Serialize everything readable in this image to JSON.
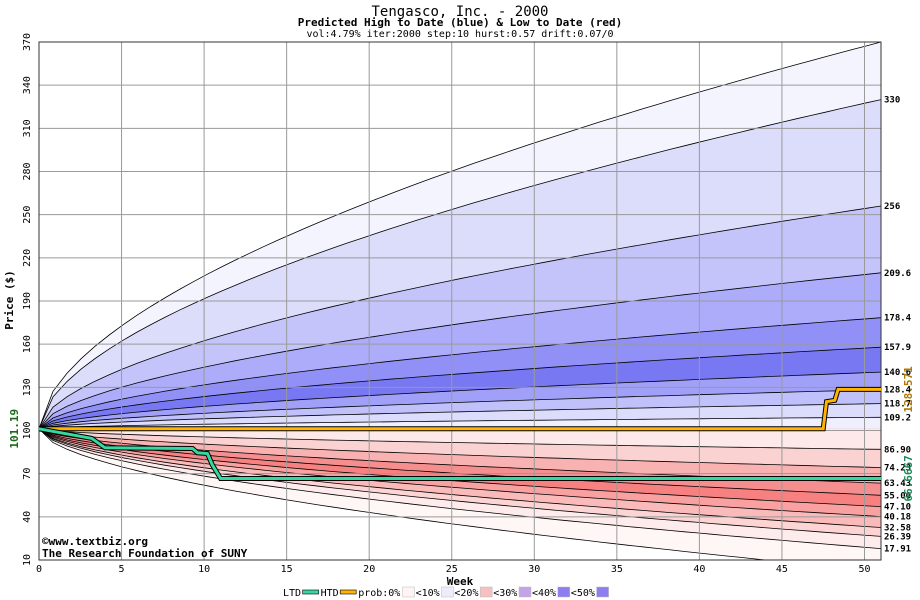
{
  "chart_data": {
    "type": "area",
    "title": "Tengasco, Inc. - 2000",
    "subtitle": "Predicted High to Date (blue) &  Low to Date (red)",
    "params": "vol:4.79% iter:2000 step:10 hurst:0.57 drift:0.07/0",
    "xlabel": "Week",
    "ylabel": "Price ($)",
    "xlim": [
      0,
      51
    ],
    "ylim": [
      10,
      370
    ],
    "xticks": [
      0,
      5,
      10,
      15,
      20,
      25,
      30,
      35,
      40,
      45,
      50
    ],
    "yticks": [
      10,
      40,
      70,
      100,
      130,
      160,
      190,
      220,
      250,
      280,
      310,
      340,
      370
    ],
    "grid": true,
    "start_price": 101.19,
    "start_label": "101.19",
    "upper_bands": [
      {
        "end": 370,
        "label": ""
      },
      {
        "end": 330,
        "label": "330"
      },
      {
        "end": 256,
        "label": "256"
      },
      {
        "end": 209.6,
        "label": "209.6"
      },
      {
        "end": 178.4,
        "label": "178.4"
      },
      {
        "end": 157.9,
        "label": "157.9"
      },
      {
        "end": 140.6,
        "label": "140.6"
      },
      {
        "end": 128.4,
        "label": "128.4"
      },
      {
        "end": 118.7,
        "label": "118.7"
      },
      {
        "end": 109.2,
        "label": "109.2"
      }
    ],
    "lower_bands": [
      {
        "end": 86.9,
        "label": "86.90"
      },
      {
        "end": 74.23,
        "label": "74.23"
      },
      {
        "end": 63.43,
        "label": "63.43"
      },
      {
        "end": 55.0,
        "label": "55.00"
      },
      {
        "end": 47.1,
        "label": "47.10"
      },
      {
        "end": 40.18,
        "label": "40.18"
      },
      {
        "end": 32.58,
        "label": "32.58"
      },
      {
        "end": 26.39,
        "label": "26.39"
      },
      {
        "end": 17.91,
        "label": "17.91"
      },
      {
        "end": 2,
        "label": ""
      }
    ],
    "ltd_series": {
      "name": "LTD",
      "end_label": "66.6667",
      "points": [
        [
          0,
          101.19
        ],
        [
          3.2,
          94.5
        ],
        [
          4,
          88
        ],
        [
          9.3,
          87.5
        ],
        [
          9.6,
          84.5
        ],
        [
          10.2,
          84
        ],
        [
          10.5,
          76
        ],
        [
          11,
          66.67
        ],
        [
          51,
          66.67
        ]
      ]
    },
    "htd_series": {
      "name": "HTD",
      "end_label": "128.571",
      "points": [
        [
          0,
          101.19
        ],
        [
          47.5,
          101.19
        ],
        [
          47.7,
          120
        ],
        [
          48.2,
          121
        ],
        [
          48.4,
          128.57
        ],
        [
          51,
          128.57
        ]
      ]
    },
    "legend": {
      "position": "bottom",
      "items": [
        "LTD",
        "HTD",
        "prob:0%",
        "<10%",
        "<20%",
        "<30%",
        "<40%",
        "<50%"
      ]
    },
    "watermark": {
      "line1": "©www.textbiz.org",
      "line2": "The Research Foundation of SUNY"
    }
  },
  "colors": {
    "ltd": "#33d9a0",
    "htd": "#ffb400",
    "upper_fills": [
      "#f4f4ff",
      "#dcdcfb",
      "#c4c4fb",
      "#acacfb",
      "#9090f7",
      "#7878f3",
      "#a0a0f8",
      "#c0c0fb",
      "#dcdcfc",
      "#efeffe"
    ],
    "lower_fills": [
      "#fde9e9",
      "#fbd2d2",
      "#f9b2b2",
      "#f58f8f",
      "#f78080",
      "#f9a0a0",
      "#fbbaba",
      "#fdd4d4",
      "#feecec",
      "#fff6f6"
    ],
    "legend_swatches": [
      "#ffffff",
      "#fff3f3",
      "#ececfd",
      "#f5c0c0",
      "#c4a4e8",
      "#8c7ef0"
    ]
  }
}
